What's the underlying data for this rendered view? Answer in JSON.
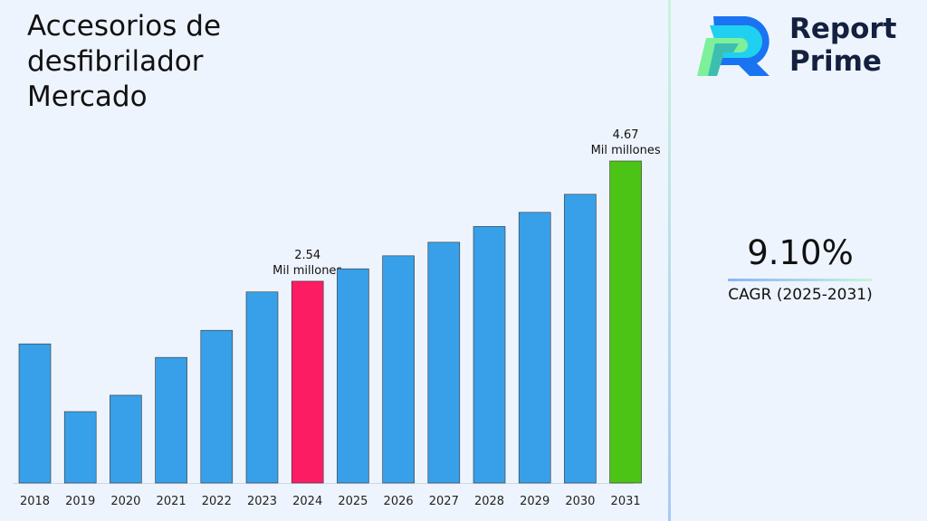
{
  "title": "Accesorios de desfibrilador Mercado",
  "brand": {
    "line1": "Report",
    "line2": "Prime"
  },
  "cagr": {
    "value": "9.10%",
    "label": "CAGR (2025-2031)"
  },
  "chart_data": {
    "type": "bar",
    "title": "Accesorios de desfibrilador Mercado",
    "xlabel": "",
    "ylabel": "",
    "categories": [
      "2018",
      "2019",
      "2020",
      "2021",
      "2022",
      "2023",
      "2024",
      "2025",
      "2026",
      "2027",
      "2028",
      "2029",
      "2030",
      "2031"
    ],
    "values": [
      1.43,
      0.23,
      0.52,
      1.19,
      1.67,
      2.35,
      2.54,
      2.76,
      2.99,
      3.23,
      3.51,
      3.76,
      4.08,
      4.67
    ],
    "colors": {
      "default": "#38a0e8",
      "highlight_2024": "#fc1c64",
      "highlight_2031": "#4cc416"
    },
    "annotations": [
      {
        "category": "2024",
        "value": "2.54",
        "unit": "Mil millones"
      },
      {
        "category": "2031",
        "value": "4.67",
        "unit": "Mil millones"
      }
    ],
    "grid": false
  }
}
